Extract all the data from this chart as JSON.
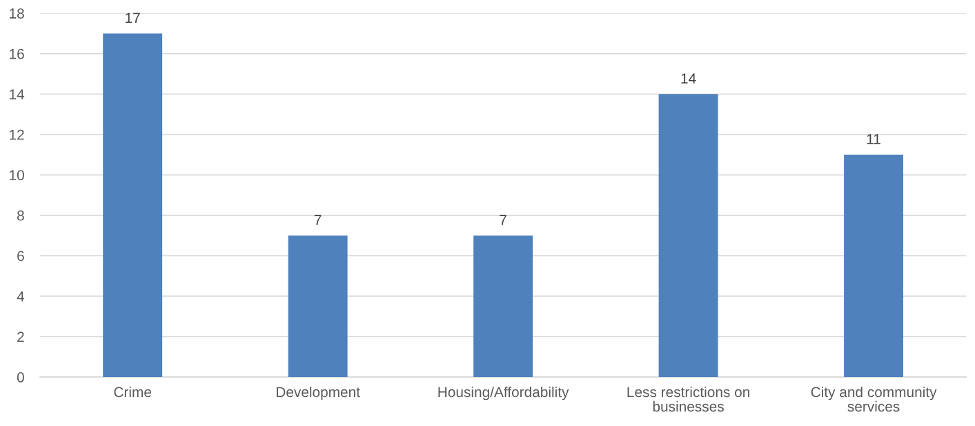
{
  "chart_data": {
    "type": "bar",
    "categories": [
      "Crime",
      "Development",
      "Housing/Affordability",
      "Less restrictions on\nbusinesses",
      "City and community\nservices"
    ],
    "values": [
      17,
      7,
      7,
      14,
      11
    ],
    "color": "#4f81bd",
    "ylim": [
      0,
      18
    ],
    "yticks": [
      0,
      2,
      4,
      6,
      8,
      10,
      12,
      14,
      16,
      18
    ],
    "grid": "y",
    "data_labels": true
  }
}
